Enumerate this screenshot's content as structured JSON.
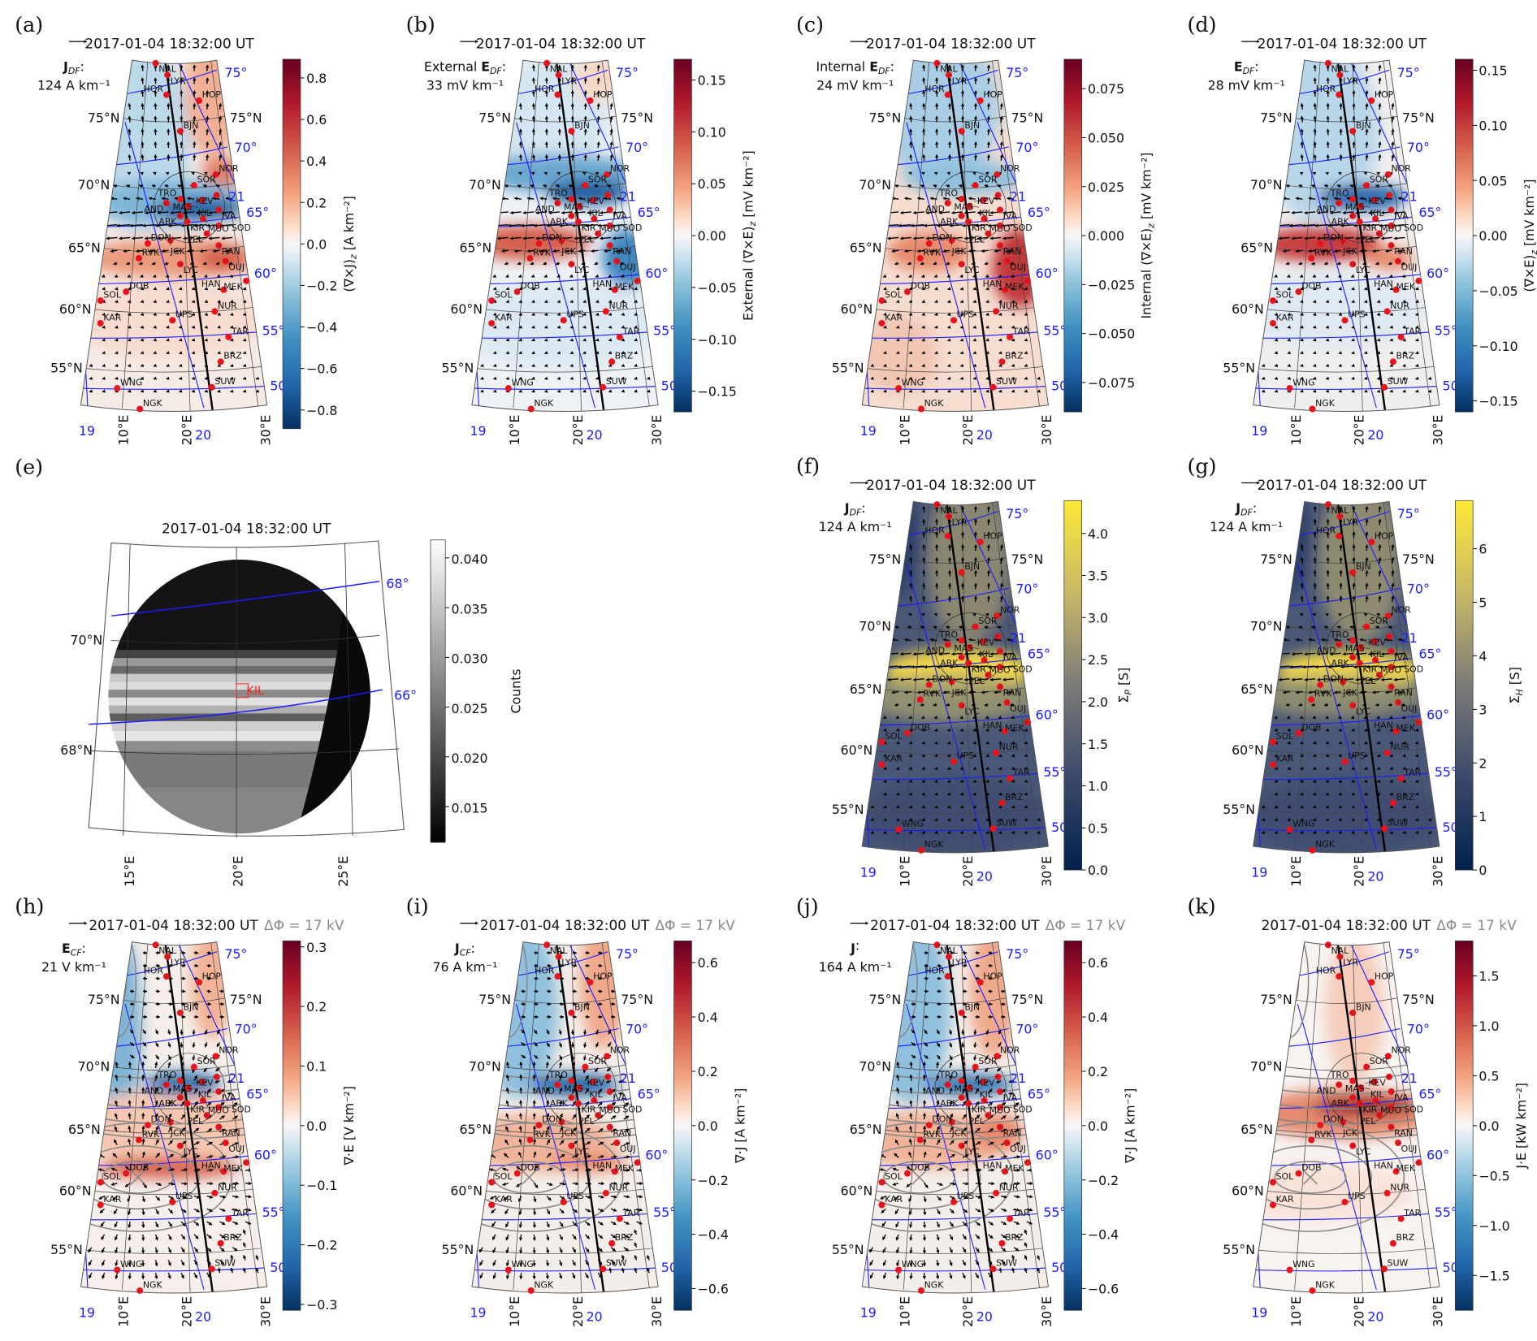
{
  "figure": {
    "map_labels": {
      "stations": [
        "NAL",
        "LYR",
        "HOR",
        "HOP",
        "BJN",
        "NOR",
        "SOR",
        "KEV",
        "TRO",
        "MAS",
        "AND",
        "KIL",
        "IVA",
        "ABK",
        "KIR",
        "MUO",
        "SOD",
        "PEL",
        "DON",
        "JCK",
        "RAN",
        "RVK",
        "LYC",
        "OUJ",
        "MEK",
        "HAN",
        "DOB",
        "SOL",
        "NUR",
        "KAR",
        "UPS",
        "TAR",
        "BRZ",
        "WNG",
        "SUW",
        "NGK"
      ],
      "lat_labels_left": [
        "75°N",
        "70°N",
        "65°N",
        "60°N",
        "55°N"
      ],
      "lat_labels_right": [
        "75°N"
      ],
      "lon_labels": [
        "10°E",
        "20°E",
        "30°E"
      ],
      "mlat_labels": [
        "75°",
        "70°",
        "65°",
        "60°",
        "55°",
        "50"
      ],
      "mlt_labels": [
        "19",
        "20",
        "21"
      ]
    },
    "panels": [
      {
        "id": "a",
        "label": "(a)",
        "title": "2017-01-04 18:32:00 UT",
        "delta_phi": "",
        "vector_key": {
          "prefix": "",
          "symbol": "J",
          "sub": "DF",
          "suffix": ":",
          "magnitude": "124 A km⁻¹"
        },
        "colorbar": {
          "main": "(∇×J)",
          "sub": "z",
          "unit": " [A km⁻²]",
          "colormap": "RdBu_r",
          "range": [
            -0.89,
            0.89
          ],
          "ticks": [
            "0.8",
            "0.6",
            "0.4",
            "0.2",
            "0.0",
            "−0.2",
            "−0.4",
            "−0.6",
            "−0.8"
          ]
        }
      },
      {
        "id": "b",
        "label": "(b)",
        "title": "2017-01-04 18:32:00 UT",
        "delta_phi": "",
        "vector_key": {
          "prefix": "External ",
          "symbol": "E",
          "sub": "DF",
          "suffix": ":",
          "magnitude": "33 mV km⁻¹"
        },
        "colorbar": {
          "main": "External (∇×E)",
          "sub": "z",
          "unit": " [mV km⁻²]",
          "colormap": "RdBu_r",
          "range": [
            -0.17,
            0.17
          ],
          "ticks": [
            "0.15",
            "0.10",
            "0.05",
            "0.00",
            "−0.05",
            "−0.10",
            "−0.15"
          ]
        }
      },
      {
        "id": "c",
        "label": "(c)",
        "title": "2017-01-04 18:32:00 UT",
        "delta_phi": "",
        "vector_key": {
          "prefix": "Internal ",
          "symbol": "E",
          "sub": "DF",
          "suffix": ":",
          "magnitude": "24 mV km⁻¹"
        },
        "colorbar": {
          "main": "Internal (∇×E)",
          "sub": "z",
          "unit": " [mV km⁻²]",
          "colormap": "RdBu_r",
          "range": [
            -0.09,
            0.09
          ],
          "ticks": [
            "0.075",
            "0.050",
            "0.025",
            "0.000",
            "−0.025",
            "−0.050",
            "−0.075"
          ]
        }
      },
      {
        "id": "d",
        "label": "(d)",
        "title": "2017-01-04 18:32:00 UT",
        "delta_phi": "",
        "vector_key": {
          "prefix": "",
          "symbol": "E",
          "sub": "DF",
          "suffix": ":",
          "magnitude": "28 mV km⁻¹"
        },
        "colorbar": {
          "main": "(∇×E)",
          "sub": "z",
          "unit": " [mV km⁻²]",
          "colormap": "RdBu_r",
          "range": [
            -0.16,
            0.16
          ],
          "ticks": [
            "0.15",
            "0.10",
            "0.05",
            "0.00",
            "−0.05",
            "−0.10",
            "−0.15"
          ]
        }
      },
      {
        "id": "f",
        "label": "(f)",
        "title": "2017-01-04 18:32:00 UT",
        "delta_phi": "",
        "vector_key": {
          "prefix": "",
          "symbol": "J",
          "sub": "DF",
          "suffix": ":",
          "magnitude": "124 A km⁻¹"
        },
        "colorbar": {
          "main": "Σ",
          "sub": "P",
          "unit": " [S]",
          "colormap": "cividis",
          "range": [
            0,
            4.39
          ],
          "ticks": [
            "4.0",
            "3.5",
            "3.0",
            "2.5",
            "2.0",
            "1.5",
            "1.0",
            "0.5",
            "0.0"
          ]
        }
      },
      {
        "id": "g",
        "label": "(g)",
        "title": "2017-01-04 18:32:00 UT",
        "delta_phi": "",
        "vector_key": {
          "prefix": "",
          "symbol": "J",
          "sub": "DF",
          "suffix": ":",
          "magnitude": "124 A km⁻¹"
        },
        "colorbar": {
          "main": "Σ",
          "sub": "H",
          "unit": " [S]",
          "colormap": "cividis",
          "range": [
            0,
            6.9
          ],
          "ticks": [
            "6",
            "5",
            "4",
            "3",
            "2",
            "1",
            "0"
          ]
        }
      },
      {
        "id": "h",
        "label": "(h)",
        "title": "2017-01-04 18:32:00 UT",
        "delta_phi": "ΔΦ = 17 kV",
        "vector_key": {
          "prefix": "",
          "symbol": "E",
          "sub": "CF",
          "suffix": ":",
          "magnitude": "21 V km⁻¹"
        },
        "colorbar": {
          "main": "∇·E",
          "sub": "",
          "unit": " [V km⁻²]",
          "colormap": "RdBu_r",
          "range": [
            -0.31,
            0.31
          ],
          "ticks": [
            "0.3",
            "0.2",
            "0.1",
            "0.0",
            "−0.1",
            "−0.2",
            "−0.3"
          ]
        }
      },
      {
        "id": "i",
        "label": "(i)",
        "title": "2017-01-04 18:32:00 UT",
        "delta_phi": "ΔΦ = 17 kV",
        "vector_key": {
          "prefix": "",
          "symbol": "J",
          "sub": "CF",
          "suffix": ":",
          "magnitude": "76 A km⁻¹"
        },
        "colorbar": {
          "main": "∇·J",
          "sub": "",
          "unit": " [A km⁻²]",
          "colormap": "RdBu_r",
          "range": [
            -0.68,
            0.68
          ],
          "ticks": [
            "0.6",
            "0.4",
            "0.2",
            "0.0",
            "−0.2",
            "−0.4",
            "−0.6"
          ]
        }
      },
      {
        "id": "j",
        "label": "(j)",
        "title": "2017-01-04 18:32:00 UT",
        "delta_phi": "ΔΦ = 17 kV",
        "vector_key": {
          "prefix": "",
          "symbol": "J",
          "sub": "",
          "suffix": ":",
          "magnitude": "164 A km⁻¹"
        },
        "colorbar": {
          "main": "∇·J",
          "sub": "",
          "unit": " [A km⁻²]",
          "colormap": "RdBu_r",
          "range": [
            -0.68,
            0.68
          ],
          "ticks": [
            "0.6",
            "0.4",
            "0.2",
            "0.0",
            "−0.2",
            "−0.4",
            "−0.6"
          ]
        }
      },
      {
        "id": "k",
        "label": "(k)",
        "title": "2017-01-04 18:32:00 UT",
        "delta_phi": "ΔΦ = 17 kV",
        "vector_key": null,
        "colorbar": {
          "main": "J·E",
          "sub": "",
          "unit": " [kW km⁻²]",
          "colormap": "RdBu_r",
          "range": [
            -1.85,
            1.85
          ],
          "ticks": [
            "1.5",
            "1.0",
            "0.5",
            "0.0",
            "−0.5",
            "−1.0",
            "−1.5"
          ]
        }
      }
    ],
    "panel_e": {
      "label": "(e)",
      "title": "2017-01-04 18:32:00 UT",
      "lat_labels": [
        "70°N",
        "68°N"
      ],
      "lon_labels": [
        "15°E",
        "20°E",
        "25°E"
      ],
      "mlat_labels": [
        "68°",
        "66°"
      ],
      "station": "KIL",
      "colorbar": {
        "label": "Counts",
        "colormap": "gray",
        "range": [
          0.0114,
          0.0418
        ],
        "ticks": [
          "0.040",
          "0.035",
          "0.030",
          "0.025",
          "0.020",
          "0.015"
        ]
      }
    },
    "colors": {
      "station": "#e8141c",
      "mag_grid": "#1a1aff",
      "contour": "#888888",
      "delta_phi": "#8a8a8a"
    }
  }
}
